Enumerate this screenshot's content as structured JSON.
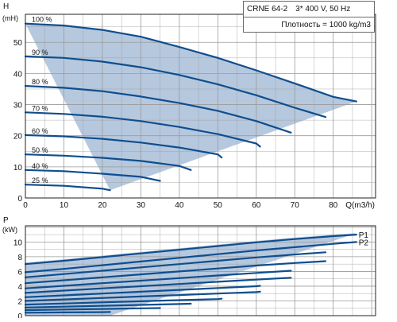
{
  "header": {
    "model": "CRNE 64-2",
    "supply": "3* 400 V, 50 Hz",
    "density": "Плотность = 1000 kg/m3"
  },
  "colors": {
    "fill": "#b6c8de",
    "curve": "#0f4e8e",
    "grid": "#9a9a9a",
    "axis": "#222222",
    "background": "#ffffff"
  },
  "chart_data": [
    {
      "type": "line",
      "ylabel": "H",
      "yunit": "(mH)",
      "xlabel": "Q(m3/h)",
      "xlim": [
        0,
        91
      ],
      "ylim": [
        0,
        59
      ],
      "xticks": [
        "0",
        "10",
        "20",
        "30",
        "40",
        "50",
        "60",
        "70",
        "80"
      ],
      "yticks": [
        "0",
        "10",
        "20",
        "30",
        "40",
        "50"
      ],
      "grid": true,
      "series": [
        {
          "name": "100 %",
          "x": [
            0,
            10,
            20,
            30,
            40,
            50,
            60,
            70,
            80,
            86
          ],
          "y": [
            56,
            55.4,
            54,
            51.8,
            48.5,
            45,
            41,
            36.8,
            32.5,
            31
          ]
        },
        {
          "name": "90 %",
          "x": [
            0,
            10,
            20,
            30,
            40,
            50,
            60,
            70,
            78
          ],
          "y": [
            45.5,
            45,
            43.8,
            42,
            39.5,
            36.5,
            33,
            29,
            26
          ]
        },
        {
          "name": "80 %",
          "x": [
            0,
            10,
            20,
            30,
            40,
            50,
            60,
            69
          ],
          "y": [
            36,
            35.4,
            34.3,
            32.6,
            30.5,
            28,
            24.7,
            21
          ]
        },
        {
          "name": "70 %",
          "x": [
            0,
            10,
            20,
            30,
            40,
            50,
            60,
            61
          ],
          "y": [
            27.5,
            27,
            26.1,
            24.7,
            22.8,
            20.5,
            17.5,
            16.5
          ]
        },
        {
          "name": "60 %",
          "x": [
            0,
            10,
            20,
            30,
            40,
            50,
            51
          ],
          "y": [
            20.2,
            19.8,
            19,
            17.8,
            16.2,
            14,
            13
          ]
        },
        {
          "name": "50 %",
          "x": [
            0,
            10,
            20,
            30,
            40,
            43
          ],
          "y": [
            14,
            13.6,
            12.9,
            11.9,
            10.3,
            9
          ]
        },
        {
          "name": "40 %",
          "x": [
            0,
            10,
            20,
            30,
            35
          ],
          "y": [
            9,
            8.6,
            7.8,
            6.8,
            5.5
          ]
        },
        {
          "name": "25 %",
          "x": [
            0,
            10,
            20,
            22
          ],
          "y": [
            4.3,
            3.9,
            3,
            2.5
          ]
        }
      ],
      "envelope": {
        "x": [
          0,
          10,
          20,
          30,
          40,
          50,
          60,
          70,
          80,
          86,
          22
        ],
        "y": [
          56,
          55.4,
          54,
          51.8,
          48.5,
          45,
          41,
          36.8,
          32.5,
          31,
          2.5
        ]
      }
    },
    {
      "type": "line",
      "ylabel": "P",
      "yunit": "(kW)",
      "xlim": [
        0,
        91
      ],
      "ylim": [
        0,
        12.2
      ],
      "yticks": [
        "0",
        "2",
        "4",
        "6",
        "8",
        "10"
      ],
      "grid": true,
      "series": [
        {
          "name": "P1",
          "x": [
            0,
            10,
            20,
            30,
            40,
            50,
            60,
            70,
            80,
            86
          ],
          "y": [
            7,
            7.45,
            7.95,
            8.45,
            8.95,
            9.45,
            9.95,
            10.4,
            10.8,
            11
          ]
        },
        {
          "name": "P2",
          "x": [
            0,
            10,
            20,
            30,
            40,
            50,
            60,
            70,
            80,
            86
          ],
          "y": [
            5.9,
            6.35,
            6.85,
            7.35,
            7.85,
            8.35,
            8.85,
            9.3,
            9.75,
            10
          ]
        },
        {
          "name": "",
          "x": [
            0,
            10,
            20,
            30,
            40,
            50,
            60,
            70,
            78
          ],
          "y": [
            5.2,
            5.65,
            6.1,
            6.55,
            7,
            7.45,
            7.9,
            8.3,
            8.6
          ]
        },
        {
          "name": "",
          "x": [
            0,
            10,
            20,
            30,
            40,
            50,
            60,
            70,
            78
          ],
          "y": [
            4.4,
            4.8,
            5.2,
            5.6,
            6,
            6.4,
            6.8,
            7.15,
            7.4
          ]
        },
        {
          "name": "",
          "x": [
            0,
            10,
            20,
            30,
            40,
            50,
            60,
            69
          ],
          "y": [
            3.7,
            4.05,
            4.4,
            4.75,
            5.1,
            5.45,
            5.8,
            6.1
          ]
        },
        {
          "name": "",
          "x": [
            0,
            10,
            20,
            30,
            40,
            50,
            60,
            69
          ],
          "y": [
            3.1,
            3.4,
            3.7,
            4,
            4.3,
            4.6,
            4.9,
            5.15
          ]
        },
        {
          "name": "",
          "x": [
            0,
            10,
            20,
            30,
            40,
            50,
            60,
            61
          ],
          "y": [
            2.5,
            2.75,
            3,
            3.25,
            3.5,
            3.75,
            4,
            4.05
          ]
        },
        {
          "name": "",
          "x": [
            0,
            10,
            20,
            30,
            40,
            50,
            60,
            61
          ],
          "y": [
            2,
            2.2,
            2.4,
            2.6,
            2.8,
            3,
            3.2,
            3.25
          ]
        },
        {
          "name": "",
          "x": [
            0,
            10,
            20,
            30,
            40,
            50,
            51
          ],
          "y": [
            1.5,
            1.65,
            1.8,
            1.95,
            2.1,
            2.25,
            2.3
          ]
        },
        {
          "name": "",
          "x": [
            0,
            10,
            20,
            30,
            40,
            43
          ],
          "y": [
            1.1,
            1.22,
            1.34,
            1.46,
            1.58,
            1.62
          ]
        },
        {
          "name": "",
          "x": [
            0,
            10,
            20,
            30,
            35
          ],
          "y": [
            0.75,
            0.83,
            0.91,
            0.99,
            1.03
          ]
        },
        {
          "name": "",
          "x": [
            0,
            10,
            20,
            22
          ],
          "y": [
            0.4,
            0.44,
            0.48,
            0.5
          ]
        }
      ],
      "envelope": {
        "x": [
          0,
          10,
          20,
          30,
          40,
          50,
          60,
          70,
          80,
          86,
          22,
          0
        ],
        "y": [
          7.2,
          7.65,
          8.15,
          8.65,
          9.15,
          9.65,
          10.15,
          10.6,
          11,
          11.2,
          0,
          0
        ]
      }
    }
  ]
}
